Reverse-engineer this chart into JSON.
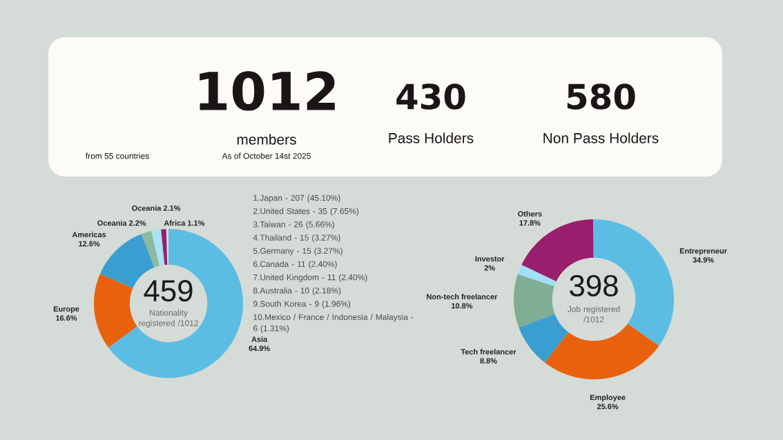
{
  "chart_data": [
    {
      "type": "other",
      "annotations": [
        "from 55 countries",
        "1012",
        "members",
        "As of October 14st 2025",
        "430",
        "Pass Holders",
        "580",
        "Non Pass Holders"
      ]
    },
    {
      "type": "donut",
      "categories": [
        "Asia",
        "Europe",
        "Americas",
        "Oceania",
        "Oceania",
        "Africa"
      ],
      "values": [
        64.9,
        16.6,
        12.6,
        2.2,
        2.1,
        1.1
      ],
      "value_labels": [
        "64.9%",
        "16.6%",
        "12.6%",
        "2.2%",
        "2.1%",
        "1.1%"
      ],
      "colors": [
        "#5bbde4",
        "#e8620e",
        "#3a9fd0",
        "#8fb8a0",
        "#a8e4f5",
        "#9a1e6e"
      ],
      "annotations": [
        "459",
        "Nationality registered /1012",
        "1.Japan - 207 (45.10%)",
        "2.United States - 35 (7.65%)",
        "3.Taiwan - 26 (5.66%)",
        "4.Thailand - 15 (3.27%)",
        "5.Germany - 15 (3.27%)",
        "6.Canada - 11 (2.40%)",
        "7.United Kingdom - 11 (2.40%)",
        "8.Australia - 10 (2.18%)",
        "9.South Korea - 9 (1.96%)",
        "10.Mexico / France / Indonesia / Malaysia - 6 (1.31%)"
      ]
    },
    {
      "type": "donut",
      "categories": [
        "Entrepreneur",
        "Employee",
        "Tech freelancer",
        "Non-tech freelancer",
        "Investor",
        "Others"
      ],
      "values": [
        34.9,
        25.6,
        8.8,
        10.8,
        2,
        17.8
      ],
      "value_labels": [
        "34.9%",
        "25.6%",
        "8.8%",
        "10.8%",
        "2%",
        "17.8%"
      ],
      "colors": [
        "#5bbde4",
        "#e8620e",
        "#3a9fd0",
        "#7fae95",
        "#9fe0f7",
        "#9a1e6e"
      ],
      "annotations": [
        "398",
        "Job registered /1012"
      ]
    }
  ]
}
